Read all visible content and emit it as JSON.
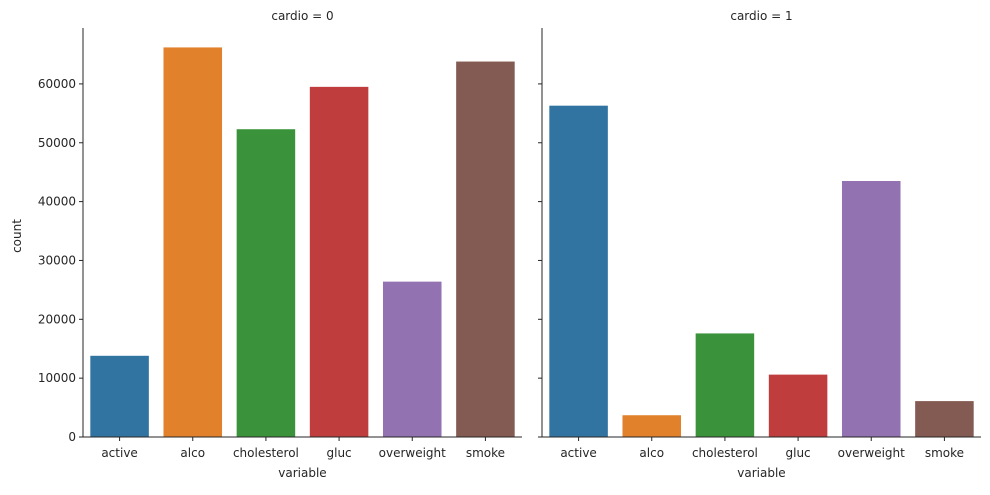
{
  "chart_data": {
    "type": "bar",
    "xlabel": "variable",
    "ylabel": "count",
    "ylim": [
      0,
      69500
    ],
    "yticks": [
      0,
      10000,
      20000,
      30000,
      40000,
      50000,
      60000
    ],
    "categories": [
      "active",
      "alco",
      "cholesterol",
      "gluc",
      "overweight",
      "smoke"
    ],
    "colors": [
      "#3274a1",
      "#e1812c",
      "#3a923a",
      "#c03d3e",
      "#9372b2",
      "#845b53"
    ],
    "grid": false,
    "legend": "none",
    "panels": [
      {
        "title": "cardio = 0",
        "values": [
          13800,
          66200,
          52300,
          59500,
          26400,
          63800
        ]
      },
      {
        "title": "cardio = 1",
        "values": [
          56300,
          3700,
          17600,
          10600,
          43500,
          6100
        ]
      }
    ]
  }
}
